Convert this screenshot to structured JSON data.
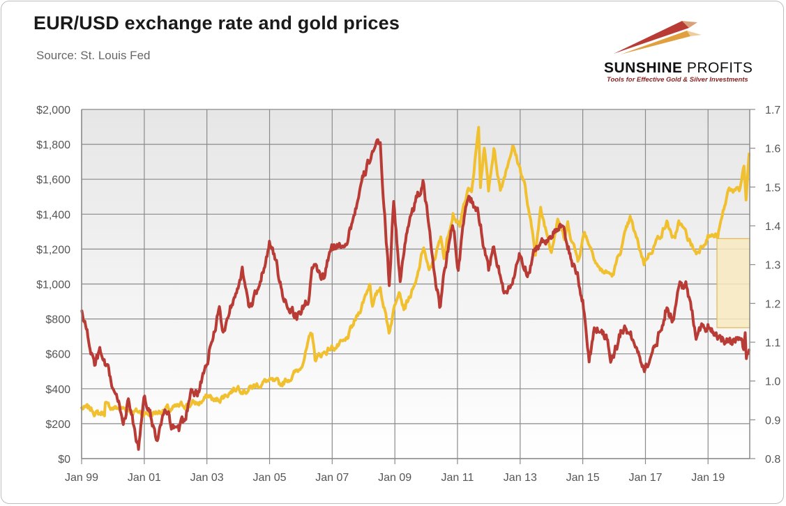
{
  "header": {
    "title": "EUR/USD  exchange rate and gold prices",
    "source": "Source: St. Louis Fed"
  },
  "logo": {
    "name_bold": "SUNSHINE",
    "name_light": " PROFITS",
    "tagline": "Tools for Effective Gold & Silver Investments"
  },
  "colors": {
    "gold": "#f0c030",
    "eurusd": "#b83c35",
    "grid": "#8a8a8a",
    "highlight_fill": "#f7e9c0",
    "highlight_stroke": "#e2b850"
  },
  "chart_data": {
    "type": "line",
    "x_type": "date",
    "xlim": [
      "1999-01-01",
      "2020-05-01"
    ],
    "x_ticks": [
      "1999-01-01",
      "2001-01-01",
      "2003-01-01",
      "2005-01-01",
      "2007-01-01",
      "2009-01-01",
      "2011-01-01",
      "2013-01-01",
      "2015-01-01",
      "2017-01-01",
      "2019-01-01"
    ],
    "x_tick_labels": [
      "Jan 99",
      "Jan 01",
      "Jan 03",
      "Jan 05",
      "Jan 07",
      "Jan 09",
      "Jan 11",
      "Jan 13",
      "Jan 15",
      "Jan 17",
      "Jan 19"
    ],
    "y_left": {
      "ylim": [
        0,
        2000
      ],
      "ticks": [
        0,
        200,
        400,
        600,
        800,
        1000,
        1200,
        1400,
        1600,
        1800,
        2000
      ],
      "tick_labels": [
        "$0",
        "$200",
        "$400",
        "$600",
        "$800",
        "$1,000",
        "$1,200",
        "$1,400",
        "$1,600",
        "$1,800",
        "$2,000"
      ]
    },
    "y_right": {
      "ylim": [
        0.8,
        1.7
      ],
      "ticks": [
        0.8,
        0.9,
        1.0,
        1.1,
        1.2,
        1.3,
        1.4,
        1.5,
        1.6,
        1.7
      ],
      "tick_labels": [
        "0.8",
        "0.9",
        "1.0",
        "1.1",
        "1.2",
        "1.3",
        "1.4",
        "1.5",
        "1.6",
        "1.7"
      ]
    },
    "grid": true,
    "legend": "none",
    "series": [
      {
        "key": "gold",
        "axis": "left",
        "color": "#f0c030",
        "points": [
          [
            "1999-01-01",
            288
          ],
          [
            "1999-05-01",
            280
          ],
          [
            "1999-07-15",
            256
          ],
          [
            "1999-09-25",
            265
          ],
          [
            "1999-10-05",
            320
          ],
          [
            "1999-11-01",
            295
          ],
          [
            "2000-03-01",
            290
          ],
          [
            "2000-07-01",
            282
          ],
          [
            "2000-11-01",
            265
          ],
          [
            "2001-04-01",
            258
          ],
          [
            "2001-09-20",
            285
          ],
          [
            "2001-11-01",
            275
          ],
          [
            "2002-05-01",
            310
          ],
          [
            "2002-10-01",
            318
          ],
          [
            "2003-02-01",
            360
          ],
          [
            "2003-04-01",
            325
          ],
          [
            "2003-09-01",
            375
          ],
          [
            "2003-12-31",
            415
          ],
          [
            "2004-04-01",
            395
          ],
          [
            "2004-12-01",
            445
          ],
          [
            "2005-05-01",
            420
          ],
          [
            "2005-12-15",
            510
          ],
          [
            "2006-05-12",
            720
          ],
          [
            "2006-06-15",
            570
          ],
          [
            "2006-12-01",
            630
          ],
          [
            "2007-06-01",
            660
          ],
          [
            "2007-11-05",
            830
          ],
          [
            "2008-03-17",
            1010
          ],
          [
            "2008-04-15",
            880
          ],
          [
            "2008-07-15",
            980
          ],
          [
            "2008-10-25",
            730
          ],
          [
            "2009-02-20",
            990
          ],
          [
            "2009-04-15",
            870
          ],
          [
            "2009-09-01",
            990
          ],
          [
            "2009-12-03",
            1215
          ],
          [
            "2010-02-05",
            1060
          ],
          [
            "2010-06-20",
            1255
          ],
          [
            "2010-07-28",
            1160
          ],
          [
            "2010-11-10",
            1420
          ],
          [
            "2011-01-28",
            1320
          ],
          [
            "2011-04-29",
            1560
          ],
          [
            "2011-06-15",
            1520
          ],
          [
            "2011-09-05",
            1895
          ],
          [
            "2011-09-26",
            1560
          ],
          [
            "2011-11-10",
            1790
          ],
          [
            "2011-12-29",
            1540
          ],
          [
            "2012-02-29",
            1780
          ],
          [
            "2012-05-16",
            1540
          ],
          [
            "2012-10-04",
            1795
          ],
          [
            "2013-02-20",
            1580
          ],
          [
            "2013-04-15",
            1395
          ],
          [
            "2013-06-28",
            1190
          ],
          [
            "2013-08-28",
            1420
          ],
          [
            "2013-12-31",
            1200
          ],
          [
            "2014-03-15",
            1390
          ],
          [
            "2014-06-01",
            1250
          ],
          [
            "2014-07-10",
            1340
          ],
          [
            "2014-11-05",
            1140
          ],
          [
            "2015-01-22",
            1300
          ],
          [
            "2015-07-24",
            1080
          ],
          [
            "2015-12-17",
            1050
          ],
          [
            "2016-07-06",
            1370
          ],
          [
            "2016-12-15",
            1125
          ],
          [
            "2017-09-08",
            1350
          ],
          [
            "2017-12-12",
            1240
          ],
          [
            "2018-01-25",
            1360
          ],
          [
            "2018-08-16",
            1175
          ],
          [
            "2018-12-31",
            1280
          ],
          [
            "2019-04-25",
            1270
          ],
          [
            "2019-09-04",
            1555
          ],
          [
            "2019-12-31",
            1520
          ],
          [
            "2020-02-24",
            1680
          ],
          [
            "2020-03-19",
            1475
          ],
          [
            "2020-04-24",
            1745
          ]
        ]
      },
      {
        "key": "eurusd",
        "axis": "right",
        "color": "#b83c35",
        "points": [
          [
            "1999-01-04",
            1.18
          ],
          [
            "1999-06-01",
            1.04
          ],
          [
            "1999-08-01",
            1.07
          ],
          [
            "1999-12-01",
            1.0
          ],
          [
            "2000-05-01",
            0.9
          ],
          [
            "2000-06-30",
            0.95
          ],
          [
            "2000-10-26",
            0.83
          ],
          [
            "2001-01-05",
            0.95
          ],
          [
            "2001-05-01",
            0.88
          ],
          [
            "2001-06-01",
            0.84
          ],
          [
            "2001-08-20",
            0.92
          ],
          [
            "2001-12-01",
            0.88
          ],
          [
            "2002-01-31",
            0.86
          ],
          [
            "2002-05-01",
            0.9
          ],
          [
            "2002-07-01",
            0.99
          ],
          [
            "2002-10-01",
            0.97
          ],
          [
            "2003-01-01",
            1.05
          ],
          [
            "2003-05-27",
            1.19
          ],
          [
            "2003-07-01",
            1.12
          ],
          [
            "2003-12-31",
            1.26
          ],
          [
            "2004-02-18",
            1.29
          ],
          [
            "2004-05-01",
            1.18
          ],
          [
            "2004-08-01",
            1.22
          ],
          [
            "2004-12-30",
            1.36
          ],
          [
            "2005-04-01",
            1.29
          ],
          [
            "2005-06-01",
            1.22
          ],
          [
            "2005-11-15",
            1.17
          ],
          [
            "2006-04-01",
            1.21
          ],
          [
            "2006-05-10",
            1.29
          ],
          [
            "2006-10-01",
            1.26
          ],
          [
            "2006-12-01",
            1.33
          ],
          [
            "2007-07-01",
            1.37
          ],
          [
            "2007-11-23",
            1.49
          ],
          [
            "2008-04-22",
            1.6
          ],
          [
            "2008-07-15",
            1.6
          ],
          [
            "2008-10-27",
            1.25
          ],
          [
            "2008-12-18",
            1.47
          ],
          [
            "2009-03-04",
            1.25
          ],
          [
            "2009-06-01",
            1.41
          ],
          [
            "2009-11-25",
            1.51
          ],
          [
            "2010-06-07",
            1.19
          ],
          [
            "2010-11-04",
            1.42
          ],
          [
            "2011-01-10",
            1.29
          ],
          [
            "2011-05-04",
            1.48
          ],
          [
            "2011-09-01",
            1.43
          ],
          [
            "2011-12-30",
            1.29
          ],
          [
            "2012-02-29",
            1.34
          ],
          [
            "2012-07-24",
            1.21
          ],
          [
            "2012-12-31",
            1.32
          ],
          [
            "2013-03-27",
            1.28
          ],
          [
            "2013-06-15",
            1.34
          ],
          [
            "2013-12-27",
            1.38
          ],
          [
            "2014-05-08",
            1.39
          ],
          [
            "2014-09-01",
            1.31
          ],
          [
            "2015-01-01",
            1.21
          ],
          [
            "2015-03-16",
            1.05
          ],
          [
            "2015-05-15",
            1.14
          ],
          [
            "2015-10-01",
            1.12
          ],
          [
            "2015-12-01",
            1.06
          ],
          [
            "2016-05-03",
            1.15
          ],
          [
            "2016-12-20",
            1.04
          ],
          [
            "2017-04-01",
            1.07
          ],
          [
            "2017-09-08",
            1.2
          ],
          [
            "2017-11-07",
            1.16
          ],
          [
            "2018-02-16",
            1.25
          ],
          [
            "2018-04-17",
            1.24
          ],
          [
            "2018-08-15",
            1.13
          ],
          [
            "2018-12-31",
            1.145
          ],
          [
            "2019-05-01",
            1.12
          ],
          [
            "2019-09-30",
            1.09
          ],
          [
            "2019-12-31",
            1.12
          ],
          [
            "2020-02-20",
            1.08
          ],
          [
            "2020-03-09",
            1.14
          ],
          [
            "2020-03-23",
            1.07
          ],
          [
            "2020-04-24",
            1.08
          ]
        ]
      }
    ],
    "annotations": [
      {
        "type": "rect",
        "x": [
          "2019-04-15",
          "2020-05-15"
        ],
        "y_left": [
          750,
          1260
        ]
      }
    ]
  }
}
